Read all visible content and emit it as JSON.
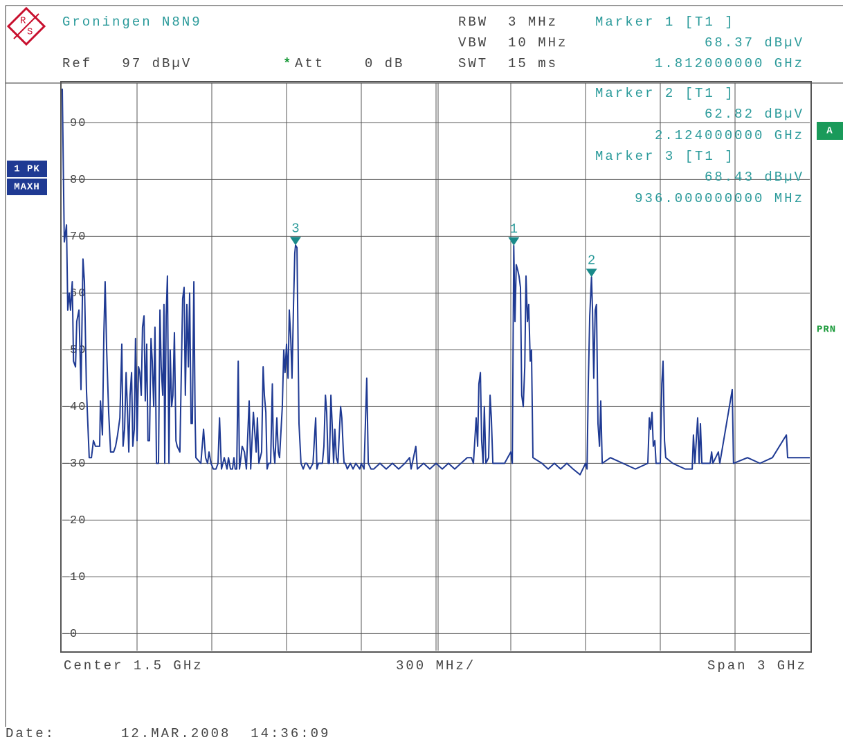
{
  "chart_data": {
    "type": "line",
    "title": "Groningen N8N9",
    "logo": {
      "top": "R",
      "bottom": "S"
    },
    "header": {
      "ref": "Ref   97 dBµV",
      "att_star": "*",
      "att": "Att    0 dB",
      "rbw": "RBW  3 MHz",
      "vbw": "VBW  10 MHz",
      "swt": "SWT  15 ms"
    },
    "badges": {
      "trace": "1 PK",
      "mode": "MAXH",
      "screen": "A",
      "prn": "PRN"
    },
    "footer": {
      "center": "Center 1.5 GHz",
      "div": "300 MHz/",
      "span": "Span 3 GHz",
      "date_label": "Date:",
      "date": "12.MAR.2008  14:36:09"
    },
    "xlim": [
      0,
      3000
    ],
    "ylim": [
      -3,
      97
    ],
    "yticks": [
      0,
      10,
      20,
      30,
      40,
      50,
      60,
      70,
      80,
      90
    ],
    "grid": true,
    "x": [
      0,
      8,
      17,
      22,
      28,
      33,
      40,
      45,
      53,
      58,
      67,
      75,
      83,
      89,
      97,
      108,
      117,
      125,
      133,
      150,
      153,
      161,
      167,
      172,
      178,
      186,
      194,
      206,
      214,
      222,
      231,
      239,
      244,
      250,
      256,
      261,
      267,
      272,
      278,
      283,
      289,
      294,
      300,
      306,
      311,
      317,
      322,
      328,
      333,
      339,
      344,
      350,
      356,
      361,
      367,
      372,
      378,
      386,
      392,
      397,
      403,
      408,
      411,
      417,
      422,
      428,
      433,
      439,
      444,
      450,
      456,
      461,
      472,
      483,
      489,
      494,
      500,
      506,
      511,
      517,
      522,
      528,
      533,
      536,
      556,
      567,
      575,
      583,
      589,
      597,
      606,
      617,
      625,
      631,
      636,
      639,
      650,
      661,
      667,
      675,
      683,
      689,
      694,
      700,
      706,
      711,
      717,
      722,
      731,
      739,
      750,
      756,
      767,
      778,
      783,
      789,
      800,
      806,
      811,
      817,
      822,
      828,
      836,
      843,
      847,
      853,
      861,
      867,
      872,
      883,
      889,
      894,
      900,
      906,
      911,
      917,
      922,
      928,
      933,
      936,
      942,
      950,
      958,
      967,
      975,
      981,
      994,
      1006,
      1017,
      1022,
      1028,
      1036,
      1044,
      1050,
      1056,
      1061,
      1067,
      1072,
      1078,
      1083,
      1089,
      1094,
      1100,
      1106,
      1117,
      1122,
      1128,
      1131,
      1136,
      1144,
      1156,
      1167,
      1178,
      1194,
      1200,
      1211,
      1222,
      1228,
      1239,
      1250,
      1275,
      1300,
      1325,
      1350,
      1375,
      1394,
      1400,
      1419,
      1425,
      1450,
      1475,
      1500,
      1525,
      1550,
      1575,
      1600,
      1625,
      1642,
      1650,
      1661,
      1667,
      1672,
      1678,
      1683,
      1689,
      1694,
      1700,
      1711,
      1717,
      1722,
      1728,
      1750,
      1775,
      1800,
      1806,
      1812,
      1817,
      1822,
      1828,
      1833,
      1839,
      1844,
      1850,
      1856,
      1861,
      1867,
      1872,
      1878,
      1883,
      1889,
      1925,
      1950,
      1975,
      2000,
      2025,
      2050,
      2078,
      2100,
      2106,
      2111,
      2117,
      2124,
      2128,
      2133,
      2139,
      2144,
      2150,
      2156,
      2161,
      2167,
      2200,
      2250,
      2300,
      2350,
      2356,
      2361,
      2367,
      2372,
      2378,
      2383,
      2400,
      2406,
      2411,
      2417,
      2422,
      2450,
      2500,
      2528,
      2533,
      2539,
      2550,
      2556,
      2561,
      2567,
      2600,
      2606,
      2611,
      2633,
      2639,
      2689,
      2694,
      2750,
      2800,
      2850,
      2906,
      2911,
      2950,
      3000
    ],
    "series": [
      {
        "color": "#1f3a93",
        "values": [
          96,
          69,
          72,
          57,
          60,
          57,
          62,
          48,
          47,
          55,
          57,
          43,
          66,
          62,
          43,
          31,
          31,
          34,
          33,
          33,
          41,
          35,
          53,
          62,
          50,
          39,
          32,
          32,
          33,
          35,
          38,
          51,
          33,
          36,
          46,
          40,
          32,
          42,
          46,
          33,
          36,
          52,
          34,
          47,
          46,
          42,
          54,
          56,
          41,
          51,
          34,
          34,
          52,
          48,
          40,
          54,
          30,
          30,
          57,
          47,
          42,
          58,
          30,
          56,
          63,
          30,
          50,
          40,
          42,
          53,
          34,
          33,
          32,
          59,
          61,
          42,
          58,
          47,
          60,
          37,
          37,
          62,
          38,
          31,
          30,
          36,
          31,
          30,
          32,
          30,
          29,
          29,
          30,
          38,
          32,
          29,
          31,
          29,
          31,
          29,
          29,
          31,
          29,
          29,
          48,
          29,
          31,
          33,
          32,
          29,
          41,
          29,
          39,
          32,
          38,
          30,
          32,
          47,
          42,
          39,
          29,
          30,
          30,
          44,
          33,
          30,
          38,
          32,
          31,
          40,
          50,
          46,
          51,
          45,
          57,
          52,
          45,
          58,
          67,
          68.43,
          68,
          37,
          30,
          29,
          30,
          30,
          29,
          30,
          38,
          29,
          30,
          30,
          30,
          33,
          42,
          39,
          30,
          30,
          42,
          37,
          30,
          36,
          31,
          30,
          40,
          38,
          32,
          30,
          30,
          29,
          30,
          29,
          30,
          29,
          30,
          29,
          45,
          30,
          29,
          29,
          30,
          29,
          30,
          29,
          30,
          31,
          29,
          33,
          29,
          30,
          29,
          30,
          29,
          30,
          29,
          30,
          31,
          31,
          30,
          38,
          33,
          44,
          46,
          34,
          30,
          40,
          30,
          31,
          42,
          38,
          30,
          30,
          30,
          32,
          30,
          68.37,
          55,
          65,
          64,
          63,
          61,
          42,
          40,
          47,
          63,
          55,
          58,
          48,
          50,
          31,
          30,
          29,
          30,
          29,
          30,
          29,
          28,
          30,
          29,
          44,
          56,
          62.82,
          57,
          45,
          57,
          58,
          37,
          33,
          41,
          30,
          31,
          30,
          29,
          30,
          38,
          36,
          39,
          33,
          34,
          30,
          30,
          44,
          48,
          34,
          31,
          30,
          29,
          29,
          35,
          30,
          38,
          30,
          37,
          30,
          30,
          32,
          30,
          32,
          30,
          43,
          30,
          31,
          30,
          31,
          35,
          31,
          31,
          31
        ]
      }
    ],
    "markers": {
      "color": "#1a8a8a",
      "names": [
        "1",
        "2",
        "3"
      ],
      "titles": [
        "Marker 1 [T1 ]",
        "Marker 2 [T1 ]",
        "Marker 3 [T1 ]"
      ],
      "x": [
        1812,
        2124,
        936
      ],
      "x_labels": [
        "1.812000000 GHz",
        "2.124000000 GHz",
        "936.000000000 MHz"
      ],
      "values": [
        68.37,
        62.82,
        68.43
      ],
      "value_labels": [
        "68.37 dBµV",
        "62.82 dBµV",
        "68.43 dBµV"
      ]
    }
  }
}
